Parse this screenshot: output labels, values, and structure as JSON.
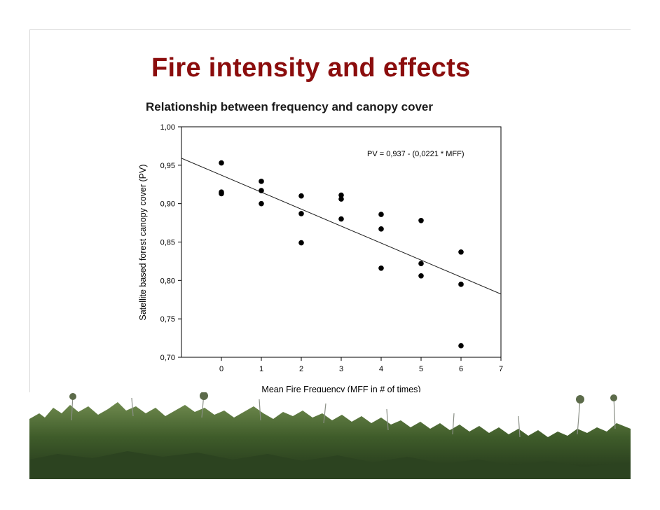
{
  "slide": {
    "title": "Fire intensity and effects",
    "subtitle": "Relationship between frequency and canopy cover",
    "title_color": "#8b0d0d"
  },
  "chart_data": {
    "type": "scatter",
    "xlabel": "Mean Fire Frequency (MFF in # of times)",
    "ylabel": "Satellite based forest canopy cover (PV)",
    "xlim": [
      -1,
      7
    ],
    "ylim": [
      0.7,
      1.0
    ],
    "xticks": [
      "0",
      "1",
      "2",
      "3",
      "4",
      "5",
      "6",
      "7"
    ],
    "yticks": [
      "0,70",
      "0,75",
      "0,80",
      "0,85",
      "0,90",
      "0,95",
      "1,00"
    ],
    "annotation": "PV = 0,937 - (0,0221 * MFF)",
    "grid": false,
    "points": [
      {
        "x": 0,
        "y": 0.953
      },
      {
        "x": 0,
        "y": 0.915
      },
      {
        "x": 0,
        "y": 0.913
      },
      {
        "x": 1,
        "y": 0.929
      },
      {
        "x": 1,
        "y": 0.917
      },
      {
        "x": 1,
        "y": 0.9
      },
      {
        "x": 2,
        "y": 0.91
      },
      {
        "x": 2,
        "y": 0.887
      },
      {
        "x": 2,
        "y": 0.849
      },
      {
        "x": 3,
        "y": 0.911
      },
      {
        "x": 3,
        "y": 0.906
      },
      {
        "x": 3,
        "y": 0.88
      },
      {
        "x": 4,
        "y": 0.886
      },
      {
        "x": 4,
        "y": 0.867
      },
      {
        "x": 4,
        "y": 0.816
      },
      {
        "x": 5,
        "y": 0.878
      },
      {
        "x": 5,
        "y": 0.822
      },
      {
        "x": 5,
        "y": 0.806
      },
      {
        "x": 6,
        "y": 0.837
      },
      {
        "x": 6,
        "y": 0.795
      },
      {
        "x": 6,
        "y": 0.715
      }
    ],
    "regression": {
      "intercept": 0.937,
      "slope": -0.0221
    }
  }
}
